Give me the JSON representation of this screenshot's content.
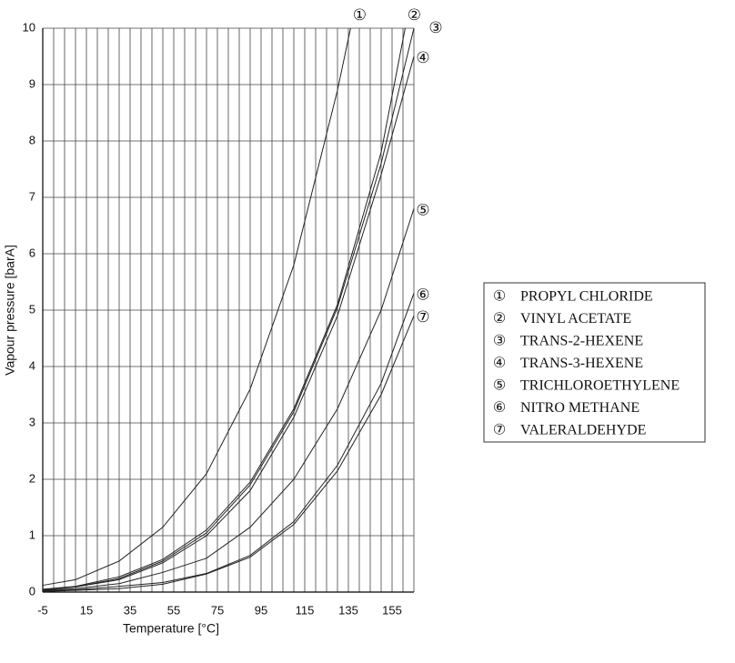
{
  "chart_data": {
    "type": "line",
    "xlabel": "Temperature [°C]",
    "ylabel": "Vapour pressure [barA]",
    "xlim": [
      -5,
      165
    ],
    "ylim": [
      0,
      10
    ],
    "xticks": [
      -5,
      15,
      35,
      55,
      75,
      95,
      115,
      135,
      155
    ],
    "yticks": [
      0,
      1,
      2,
      3,
      4,
      5,
      6,
      7,
      8,
      9,
      10
    ],
    "xgrid": [
      -5,
      0,
      5,
      10,
      15,
      20,
      25,
      30,
      35,
      40,
      45,
      50,
      55,
      60,
      65,
      70,
      75,
      80,
      85,
      90,
      95,
      100,
      105,
      110,
      115,
      120,
      125,
      130,
      135,
      140,
      145,
      150,
      155,
      160,
      165
    ],
    "grid": true,
    "legend": "right",
    "series": [
      {
        "name": "PROPYL CHLORIDE",
        "label": "①",
        "color": "#222222",
        "x": [
          -5,
          10,
          30,
          50,
          70,
          90,
          110,
          130,
          136
        ],
        "values": [
          0.12,
          0.22,
          0.55,
          1.15,
          2.1,
          3.6,
          5.8,
          8.9,
          10
        ]
      },
      {
        "name": "VINYL ACETATE",
        "label": "②",
        "color": "#222222",
        "x": [
          -5,
          10,
          30,
          50,
          70,
          90,
          110,
          130,
          150,
          161
        ],
        "values": [
          0.05,
          0.1,
          0.27,
          0.58,
          1.1,
          1.95,
          3.25,
          5.1,
          7.8,
          10
        ]
      },
      {
        "name": "TRANS-2-HEXENE",
        "label": "③",
        "color": "#222222",
        "x": [
          -5,
          10,
          30,
          50,
          70,
          90,
          110,
          130,
          150,
          165
        ],
        "values": [
          0.04,
          0.09,
          0.24,
          0.55,
          1.05,
          1.9,
          3.2,
          5.05,
          7.6,
          10
        ]
      },
      {
        "name": "TRANS-3-HEXENE",
        "label": "④",
        "color": "#222222",
        "x": [
          -5,
          10,
          30,
          50,
          70,
          90,
          110,
          130,
          150,
          165
        ],
        "values": [
          0.04,
          0.09,
          0.22,
          0.52,
          1.0,
          1.8,
          3.1,
          4.9,
          7.4,
          9.5
        ]
      },
      {
        "name": "TRICHLOROETHYLENE",
        "label": "⑤",
        "color": "#222222",
        "x": [
          -5,
          10,
          30,
          50,
          70,
          90,
          110,
          130,
          150,
          165
        ],
        "values": [
          0.03,
          0.06,
          0.15,
          0.35,
          0.6,
          1.15,
          2.0,
          3.25,
          5.0,
          6.8
        ]
      },
      {
        "name": "NITRO METHANE",
        "label": "⑥",
        "color": "#222222",
        "x": [
          -5,
          10,
          30,
          50,
          70,
          90,
          110,
          130,
          150,
          165
        ],
        "values": [
          0.02,
          0.04,
          0.1,
          0.17,
          0.33,
          0.65,
          1.25,
          2.25,
          3.7,
          5.3
        ]
      },
      {
        "name": "VALERALDEHYDE",
        "label": "⑦",
        "color": "#222222",
        "x": [
          -5,
          10,
          30,
          50,
          70,
          90,
          110,
          130,
          150,
          165
        ],
        "values": [
          0.01,
          0.03,
          0.06,
          0.14,
          0.32,
          0.62,
          1.2,
          2.15,
          3.5,
          4.9
        ]
      }
    ]
  }
}
